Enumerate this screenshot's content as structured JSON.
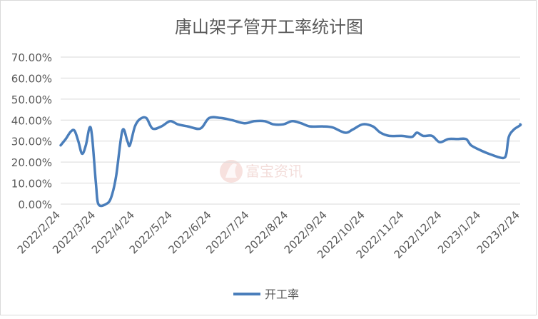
{
  "chart_data": {
    "type": "line",
    "title": "唐山架子管开工率统计图",
    "xlabel": "",
    "ylabel": "",
    "ylim": [
      0,
      0.7
    ],
    "y_ticks": [
      0,
      0.1,
      0.2,
      0.3,
      0.4,
      0.5,
      0.6,
      0.7
    ],
    "y_tick_labels": [
      "0.00%",
      "10.00%",
      "20.00%",
      "30.00%",
      "40.00%",
      "50.00%",
      "60.00%",
      "70.00%"
    ],
    "x_range": [
      "2022-02-24",
      "2023-02-24"
    ],
    "x_ticks": [
      "2022-02-24",
      "2022-03-24",
      "2022-04-24",
      "2022-05-24",
      "2022-06-24",
      "2022-07-24",
      "2022-08-24",
      "2022-09-24",
      "2022-10-24",
      "2022-11-24",
      "2022-12-24",
      "2023-01-24",
      "2023-02-24"
    ],
    "x_tick_labels": [
      "2022/2/24",
      "2022/3/24",
      "2022/4/24",
      "2022/5/24",
      "2022/6/24",
      "2022/7/24",
      "2022/8/24",
      "2022/9/24",
      "2022/10/24",
      "2022/11/24",
      "2022/12/24",
      "2023/1/24",
      "2023/2/24"
    ],
    "grid": true,
    "legend": "bottom",
    "watermark": "富宝资讯",
    "series": [
      {
        "name": "开工率",
        "color": "#4a7ebb",
        "points": [
          [
            "2022-02-24",
            0.28
          ],
          [
            "2022-02-28",
            0.31
          ],
          [
            "2022-03-04",
            0.345
          ],
          [
            "2022-03-07",
            0.35
          ],
          [
            "2022-03-10",
            0.3
          ],
          [
            "2022-03-13",
            0.24
          ],
          [
            "2022-03-16",
            0.28
          ],
          [
            "2022-03-19",
            0.365
          ],
          [
            "2022-03-21",
            0.32
          ],
          [
            "2022-03-24",
            0.1
          ],
          [
            "2022-03-26",
            0.0
          ],
          [
            "2022-04-01",
            0.0
          ],
          [
            "2022-04-05",
            0.03
          ],
          [
            "2022-04-09",
            0.13
          ],
          [
            "2022-04-14",
            0.35
          ],
          [
            "2022-04-18",
            0.3
          ],
          [
            "2022-04-20",
            0.28
          ],
          [
            "2022-04-24",
            0.37
          ],
          [
            "2022-04-28",
            0.405
          ],
          [
            "2022-05-03",
            0.41
          ],
          [
            "2022-05-08",
            0.36
          ],
          [
            "2022-05-15",
            0.37
          ],
          [
            "2022-05-22",
            0.395
          ],
          [
            "2022-05-28",
            0.38
          ],
          [
            "2022-06-05",
            0.37
          ],
          [
            "2022-06-15",
            0.36
          ],
          [
            "2022-06-22",
            0.41
          ],
          [
            "2022-07-01",
            0.41
          ],
          [
            "2022-07-10",
            0.4
          ],
          [
            "2022-07-20",
            0.385
          ],
          [
            "2022-07-28",
            0.395
          ],
          [
            "2022-08-05",
            0.395
          ],
          [
            "2022-08-12",
            0.38
          ],
          [
            "2022-08-20",
            0.38
          ],
          [
            "2022-08-27",
            0.395
          ],
          [
            "2022-09-03",
            0.385
          ],
          [
            "2022-09-10",
            0.37
          ],
          [
            "2022-09-20",
            0.37
          ],
          [
            "2022-09-28",
            0.365
          ],
          [
            "2022-10-08",
            0.34
          ],
          [
            "2022-10-14",
            0.355
          ],
          [
            "2022-10-22",
            0.38
          ],
          [
            "2022-10-30",
            0.37
          ],
          [
            "2022-11-05",
            0.34
          ],
          [
            "2022-11-12",
            0.325
          ],
          [
            "2022-11-22",
            0.325
          ],
          [
            "2022-11-30",
            0.32
          ],
          [
            "2022-12-04",
            0.34
          ],
          [
            "2022-12-09",
            0.325
          ],
          [
            "2022-12-16",
            0.325
          ],
          [
            "2022-12-22",
            0.295
          ],
          [
            "2022-12-29",
            0.31
          ],
          [
            "2023-01-05",
            0.31
          ],
          [
            "2023-01-12",
            0.31
          ],
          [
            "2023-01-16",
            0.28
          ],
          [
            "2023-01-24",
            0.255
          ],
          [
            "2023-01-30",
            0.24
          ],
          [
            "2023-02-06",
            0.225
          ],
          [
            "2023-02-11",
            0.22
          ],
          [
            "2023-02-13",
            0.24
          ],
          [
            "2023-02-15",
            0.32
          ],
          [
            "2023-02-19",
            0.355
          ],
          [
            "2023-02-24",
            0.375
          ],
          [
            "2023-02-28",
            0.38
          ]
        ]
      }
    ]
  }
}
